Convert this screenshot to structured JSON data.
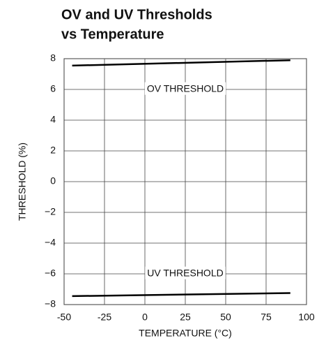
{
  "chart_data": {
    "type": "line",
    "title": [
      "OV and UV Thresholds",
      "vs Temperature"
    ],
    "x_label": "TEMPERATURE (°C)",
    "y_label": "THRESHOLD (%)",
    "x": [
      -45,
      90
    ],
    "series": [
      {
        "name": "OV THRESHOLD",
        "color": "#000000",
        "values": [
          7.55,
          7.9
        ]
      },
      {
        "name": "UV THRESHOLD",
        "color": "#000000",
        "values": [
          -7.45,
          -7.25
        ]
      }
    ],
    "annotations": [
      {
        "text": "OV THRESHOLD",
        "x": 25,
        "y": 6
      },
      {
        "text": "UV THRESHOLD",
        "x": 25,
        "y": -6
      }
    ],
    "xlim": [
      -50,
      100
    ],
    "xticks": [
      -50,
      -25,
      0,
      25,
      50,
      75,
      100
    ],
    "ylim": [
      -8,
      8
    ],
    "yticks": [
      {
        "value": -8,
        "label": "−8"
      },
      {
        "value": -6,
        "label": "−6"
      },
      {
        "value": -4,
        "label": "−4"
      },
      {
        "value": -2,
        "label": "−2"
      },
      0,
      2,
      4,
      6,
      8
    ],
    "grid": true
  }
}
